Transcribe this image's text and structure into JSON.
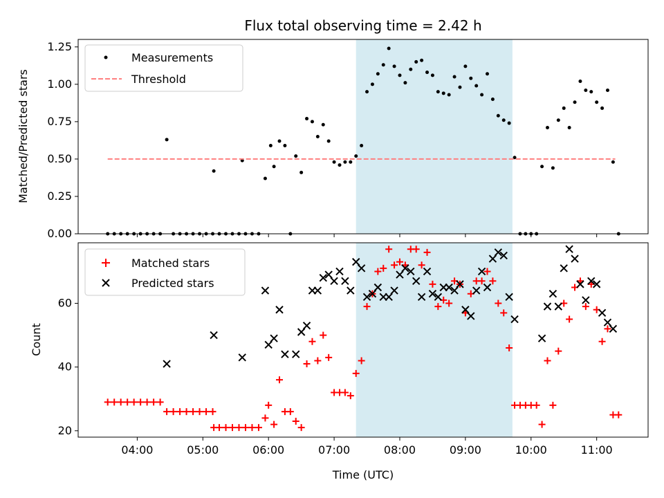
{
  "chart_data": [
    {
      "type": "scatter",
      "title": "Flux total observing time = 2.42 h",
      "ylabel": "Matched/Predicted stars",
      "xlabel": "",
      "ylim": [
        0,
        1.3
      ],
      "yticks": [
        "0.00",
        "0.25",
        "0.50",
        "0.75",
        "1.00",
        "1.25"
      ],
      "ytick_values": [
        0,
        0.25,
        0.5,
        0.75,
        1.0,
        1.25
      ],
      "highlight_window": [
        "07:20",
        "09:43"
      ],
      "legend_placement": "top-left",
      "series": [
        {
          "name": "Measurements",
          "marker": "dot",
          "color": "#000000",
          "points": [
            [
              "03:33",
              0
            ],
            [
              "03:39",
              0
            ],
            [
              "03:45",
              0
            ],
            [
              "03:51",
              0
            ],
            [
              "03:57",
              0
            ],
            [
              "04:03",
              0
            ],
            [
              "04:09",
              0
            ],
            [
              "04:15",
              0
            ],
            [
              "04:21",
              0
            ],
            [
              "04:27",
              0.63
            ],
            [
              "04:33",
              0
            ],
            [
              "04:39",
              0
            ],
            [
              "04:45",
              0
            ],
            [
              "04:51",
              0
            ],
            [
              "04:57",
              0
            ],
            [
              "05:03",
              0
            ],
            [
              "05:09",
              0
            ],
            [
              "05:10",
              0.42
            ],
            [
              "05:15",
              0
            ],
            [
              "05:21",
              0
            ],
            [
              "05:27",
              0
            ],
            [
              "05:33",
              0
            ],
            [
              "05:36",
              0.49
            ],
            [
              "05:39",
              0
            ],
            [
              "05:45",
              0
            ],
            [
              "05:51",
              0
            ],
            [
              "05:57",
              0.37
            ],
            [
              "06:02",
              0.59
            ],
            [
              "06:05",
              0.45
            ],
            [
              "06:10",
              0.62
            ],
            [
              "06:15",
              0.59
            ],
            [
              "06:20",
              0
            ],
            [
              "06:25",
              0.52
            ],
            [
              "06:30",
              0.41
            ],
            [
              "06:35",
              0.77
            ],
            [
              "06:40",
              0.75
            ],
            [
              "06:45",
              0.65
            ],
            [
              "06:50",
              0.73
            ],
            [
              "06:55",
              0.62
            ],
            [
              "07:00",
              0.48
            ],
            [
              "07:05",
              0.46
            ],
            [
              "07:10",
              0.48
            ],
            [
              "07:15",
              0.48
            ],
            [
              "07:20",
              0.52
            ],
            [
              "07:25",
              0.59
            ],
            [
              "07:30",
              0.95
            ],
            [
              "07:35",
              1.0
            ],
            [
              "07:40",
              1.07
            ],
            [
              "07:45",
              1.13
            ],
            [
              "07:50",
              1.24
            ],
            [
              "07:55",
              1.12
            ],
            [
              "08:00",
              1.06
            ],
            [
              "08:05",
              1.01
            ],
            [
              "08:10",
              1.1
            ],
            [
              "08:15",
              1.15
            ],
            [
              "08:20",
              1.16
            ],
            [
              "08:25",
              1.08
            ],
            [
              "08:30",
              1.06
            ],
            [
              "08:35",
              0.95
            ],
            [
              "08:40",
              0.94
            ],
            [
              "08:45",
              0.93
            ],
            [
              "08:50",
              1.05
            ],
            [
              "08:55",
              0.98
            ],
            [
              "09:00",
              1.12
            ],
            [
              "09:05",
              1.04
            ],
            [
              "09:10",
              0.99
            ],
            [
              "09:15",
              0.93
            ],
            [
              "09:20",
              1.07
            ],
            [
              "09:25",
              0.9
            ],
            [
              "09:30",
              0.79
            ],
            [
              "09:35",
              0.76
            ],
            [
              "09:40",
              0.74
            ],
            [
              "09:45",
              0.51
            ],
            [
              "09:50",
              0
            ],
            [
              "09:55",
              0
            ],
            [
              "10:00",
              0
            ],
            [
              "10:05",
              0
            ],
            [
              "10:10",
              0.45
            ],
            [
              "10:15",
              0.71
            ],
            [
              "10:20",
              0.44
            ],
            [
              "10:25",
              0.76
            ],
            [
              "10:30",
              0.84
            ],
            [
              "10:35",
              0.71
            ],
            [
              "10:40",
              0.88
            ],
            [
              "10:45",
              1.02
            ],
            [
              "10:50",
              0.96
            ],
            [
              "10:55",
              0.95
            ],
            [
              "11:00",
              0.88
            ],
            [
              "11:05",
              0.84
            ],
            [
              "11:10",
              0.96
            ],
            [
              "11:15",
              0.48
            ],
            [
              "11:20",
              0
            ]
          ]
        },
        {
          "name": "Threshold",
          "marker": "dashed-line",
          "color": "#ff7f7f",
          "points": [
            [
              "03:33",
              0.5
            ],
            [
              "11:17",
              0.5
            ]
          ]
        }
      ]
    },
    {
      "type": "scatter",
      "title": "",
      "ylabel": "Count",
      "xlabel": "Time (UTC)",
      "ylim": [
        18,
        79
      ],
      "yticks": [
        "20",
        "40",
        "60"
      ],
      "ytick_values": [
        20,
        40,
        60
      ],
      "xticks": [
        "04:00",
        "05:00",
        "06:00",
        "07:00",
        "08:00",
        "09:00",
        "10:00",
        "11:00"
      ],
      "xlim": [
        "03:06",
        "11:47"
      ],
      "highlight_window": [
        "07:20",
        "09:43"
      ],
      "highlight_color": "#add8e6",
      "legend_placement": "top-left",
      "series": [
        {
          "name": "Matched stars",
          "marker": "plus",
          "color": "#ff0000",
          "points": [
            [
              "03:33",
              29
            ],
            [
              "03:39",
              29
            ],
            [
              "03:45",
              29
            ],
            [
              "03:51",
              29
            ],
            [
              "03:57",
              29
            ],
            [
              "04:03",
              29
            ],
            [
              "04:09",
              29
            ],
            [
              "04:15",
              29
            ],
            [
              "04:21",
              29
            ],
            [
              "04:27",
              26
            ],
            [
              "04:33",
              26
            ],
            [
              "04:39",
              26
            ],
            [
              "04:45",
              26
            ],
            [
              "04:51",
              26
            ],
            [
              "04:57",
              26
            ],
            [
              "05:03",
              26
            ],
            [
              "05:09",
              26
            ],
            [
              "05:10",
              21
            ],
            [
              "05:15",
              21
            ],
            [
              "05:21",
              21
            ],
            [
              "05:27",
              21
            ],
            [
              "05:33",
              21
            ],
            [
              "05:39",
              21
            ],
            [
              "05:45",
              21
            ],
            [
              "05:51",
              21
            ],
            [
              "05:57",
              24
            ],
            [
              "06:00",
              28
            ],
            [
              "06:05",
              22
            ],
            [
              "06:10",
              36
            ],
            [
              "06:15",
              26
            ],
            [
              "06:20",
              26
            ],
            [
              "06:25",
              23
            ],
            [
              "06:30",
              21
            ],
            [
              "06:35",
              41
            ],
            [
              "06:40",
              48
            ],
            [
              "06:45",
              42
            ],
            [
              "06:50",
              50
            ],
            [
              "06:55",
              43
            ],
            [
              "07:00",
              32
            ],
            [
              "07:05",
              32
            ],
            [
              "07:10",
              32
            ],
            [
              "07:15",
              31
            ],
            [
              "07:20",
              38
            ],
            [
              "07:25",
              42
            ],
            [
              "07:30",
              59
            ],
            [
              "07:35",
              63
            ],
            [
              "07:40",
              70
            ],
            [
              "07:45",
              71
            ],
            [
              "07:50",
              77
            ],
            [
              "07:55",
              72
            ],
            [
              "08:00",
              73
            ],
            [
              "08:05",
              72
            ],
            [
              "08:10",
              77
            ],
            [
              "08:15",
              77
            ],
            [
              "08:20",
              72
            ],
            [
              "08:25",
              76
            ],
            [
              "08:30",
              66
            ],
            [
              "08:35",
              59
            ],
            [
              "08:40",
              61
            ],
            [
              "08:45",
              60
            ],
            [
              "08:50",
              67
            ],
            [
              "08:55",
              66
            ],
            [
              "09:00",
              57
            ],
            [
              "09:05",
              63
            ],
            [
              "09:10",
              67
            ],
            [
              "09:15",
              67
            ],
            [
              "09:20",
              70
            ],
            [
              "09:25",
              67
            ],
            [
              "09:30",
              60
            ],
            [
              "09:35",
              57
            ],
            [
              "09:40",
              46
            ],
            [
              "09:45",
              28
            ],
            [
              "09:50",
              28
            ],
            [
              "09:55",
              28
            ],
            [
              "10:00",
              28
            ],
            [
              "10:05",
              28
            ],
            [
              "10:10",
              22
            ],
            [
              "10:15",
              42
            ],
            [
              "10:20",
              28
            ],
            [
              "10:25",
              45
            ],
            [
              "10:30",
              60
            ],
            [
              "10:35",
              55
            ],
            [
              "10:40",
              65
            ],
            [
              "10:45",
              67
            ],
            [
              "10:50",
              59
            ],
            [
              "10:55",
              66
            ],
            [
              "11:00",
              58
            ],
            [
              "11:05",
              48
            ],
            [
              "11:10",
              52
            ],
            [
              "11:15",
              25
            ],
            [
              "11:20",
              25
            ]
          ]
        },
        {
          "name": "Predicted stars",
          "marker": "x",
          "color": "#000000",
          "points": [
            [
              "04:27",
              41
            ],
            [
              "05:10",
              50
            ],
            [
              "05:36",
              43
            ],
            [
              "05:57",
              64
            ],
            [
              "06:00",
              47
            ],
            [
              "06:05",
              49
            ],
            [
              "06:10",
              58
            ],
            [
              "06:15",
              44
            ],
            [
              "06:25",
              44
            ],
            [
              "06:30",
              51
            ],
            [
              "06:35",
              53
            ],
            [
              "06:40",
              64
            ],
            [
              "06:45",
              64
            ],
            [
              "06:50",
              68
            ],
            [
              "06:55",
              69
            ],
            [
              "07:00",
              67
            ],
            [
              "07:05",
              70
            ],
            [
              "07:10",
              67
            ],
            [
              "07:15",
              64
            ],
            [
              "07:20",
              73
            ],
            [
              "07:25",
              71
            ],
            [
              "07:30",
              62
            ],
            [
              "07:35",
              63
            ],
            [
              "07:40",
              65
            ],
            [
              "07:45",
              62
            ],
            [
              "07:50",
              62
            ],
            [
              "07:55",
              64
            ],
            [
              "08:00",
              69
            ],
            [
              "08:05",
              71
            ],
            [
              "08:10",
              70
            ],
            [
              "08:15",
              67
            ],
            [
              "08:20",
              62
            ],
            [
              "08:25",
              70
            ],
            [
              "08:30",
              63
            ],
            [
              "08:35",
              62
            ],
            [
              "08:40",
              65
            ],
            [
              "08:45",
              65
            ],
            [
              "08:50",
              64
            ],
            [
              "08:55",
              66
            ],
            [
              "09:00",
              58
            ],
            [
              "09:05",
              56
            ],
            [
              "09:10",
              64
            ],
            [
              "09:15",
              70
            ],
            [
              "09:20",
              65
            ],
            [
              "09:25",
              74
            ],
            [
              "09:30",
              76
            ],
            [
              "09:35",
              75
            ],
            [
              "09:40",
              62
            ],
            [
              "09:45",
              55
            ],
            [
              "10:10",
              49
            ],
            [
              "10:15",
              59
            ],
            [
              "10:20",
              63
            ],
            [
              "10:25",
              59
            ],
            [
              "10:30",
              71
            ],
            [
              "10:35",
              77
            ],
            [
              "10:40",
              74
            ],
            [
              "10:45",
              66
            ],
            [
              "10:50",
              61
            ],
            [
              "10:55",
              67
            ],
            [
              "11:00",
              66
            ],
            [
              "11:05",
              57
            ],
            [
              "11:10",
              54
            ],
            [
              "11:15",
              52
            ]
          ]
        }
      ]
    }
  ]
}
